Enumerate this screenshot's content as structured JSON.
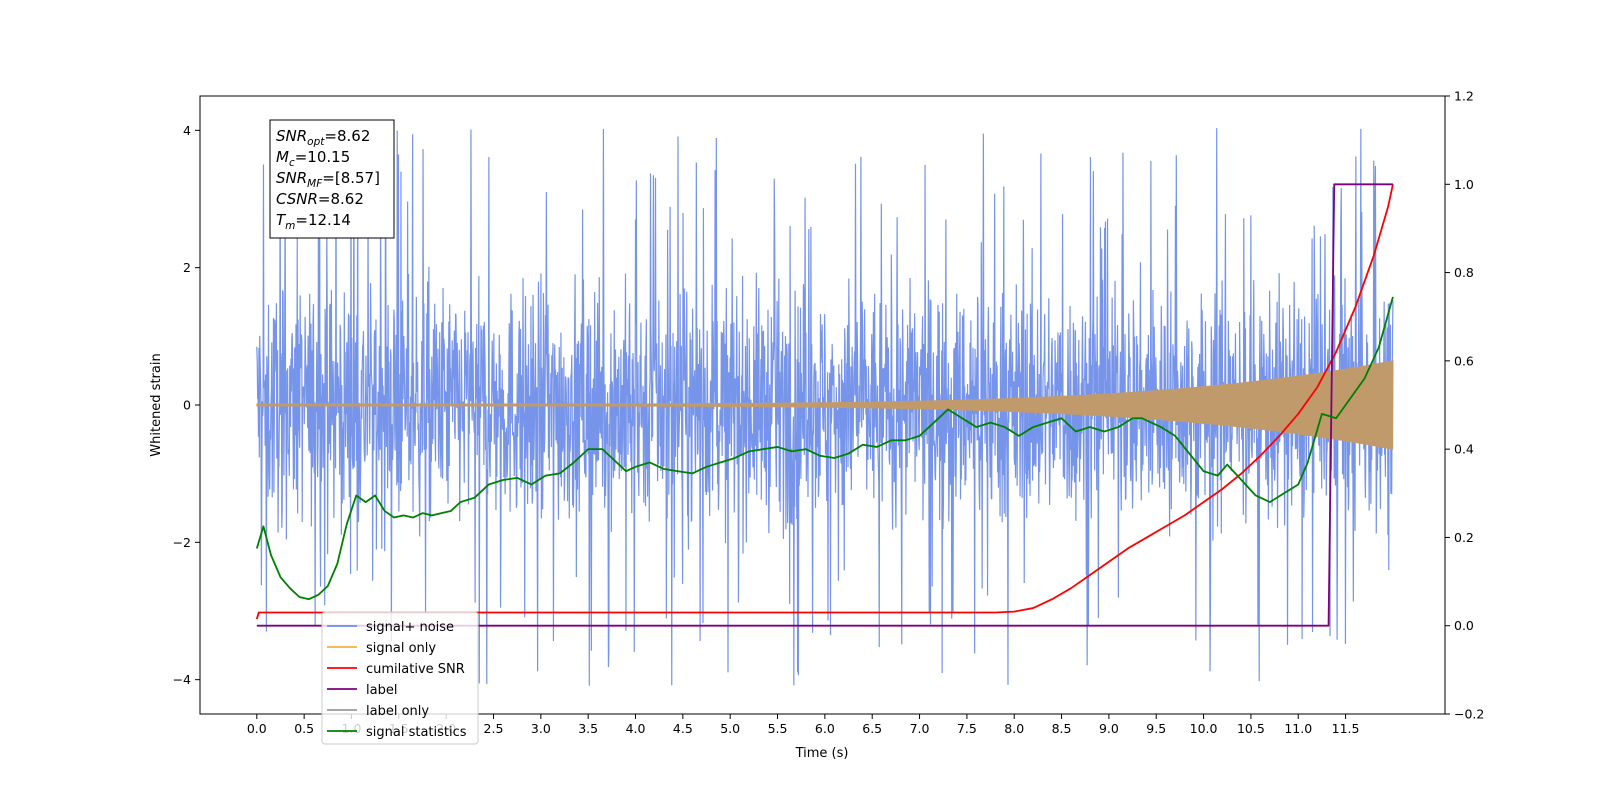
{
  "chart_data": {
    "type": "line",
    "xlabel": "Time (s)",
    "ylabel": "Whitened strain",
    "xlim": [
      -0.6,
      12.55
    ],
    "ylim": [
      -4.5,
      4.5
    ],
    "y2lim": [
      -0.2,
      1.2
    ],
    "x_ticks": [
      0.0,
      0.5,
      1.0,
      1.5,
      2.0,
      2.5,
      3.0,
      3.5,
      4.0,
      4.5,
      5.0,
      5.5,
      6.0,
      6.5,
      7.0,
      7.5,
      8.0,
      8.5,
      9.0,
      9.5,
      10.0,
      10.5,
      11.0,
      11.5
    ],
    "x_tick_labels": [
      "0.0",
      "0.5",
      "1.0",
      "1.5",
      "2.0",
      "2.5",
      "3.0",
      "3.5",
      "4.0",
      "4.5",
      "5.0",
      "5.5",
      "6.0",
      "6.5",
      "7.0",
      "7.5",
      "8.0",
      "8.5",
      "9.0",
      "9.5",
      "10.0",
      "10.5",
      "11.0",
      "11.5"
    ],
    "y_ticks": [
      -4,
      -2,
      0,
      2,
      4
    ],
    "y_tick_labels": [
      "−4",
      "−2",
      "0",
      "2",
      "4"
    ],
    "y2_ticks": [
      -0.2,
      0.0,
      0.2,
      0.4,
      0.6,
      0.8,
      1.0,
      1.2
    ],
    "y2_tick_labels": [
      "−0.2",
      "0.0",
      "0.2",
      "0.4",
      "0.6",
      "0.8",
      "1.0",
      "1.2"
    ],
    "grid": false,
    "legend_position": "lower-left",
    "annotation_lines": [
      {
        "base": "SNR",
        "sub": "opt",
        "rest": "=8.62"
      },
      {
        "base": "M",
        "sub": "c",
        "rest": "=10.15"
      },
      {
        "base": "SNR",
        "sub": "MF",
        "rest": "=[8.57]"
      },
      {
        "base": "CSNR",
        "sub": "",
        "rest": "=8.62"
      },
      {
        "base": "T",
        "sub": "m",
        "rest": "=12.14"
      }
    ],
    "series": [
      {
        "name": "signal+ noise",
        "color": "#6f8ee8",
        "axis": "left",
        "style": "noise",
        "x_range": [
          0.0,
          12.0
        ],
        "band_center": 0.0,
        "band_halfwidth": 1.6,
        "max": 4.1,
        "min": -4.1
      },
      {
        "name": "signal only",
        "color": "#f5b041",
        "axis": "left",
        "style": "chirp",
        "x_range": [
          0.0,
          12.0
        ],
        "amplitude_start": 0.02,
        "amplitude_end": 0.65
      },
      {
        "name": "cumilative SNR",
        "color": "#ff0000",
        "axis": "right",
        "x": [
          0.0,
          0.02,
          7.8,
          8.0,
          8.2,
          8.4,
          8.6,
          8.8,
          9.0,
          9.2,
          9.4,
          9.6,
          9.8,
          10.0,
          10.2,
          10.4,
          10.6,
          10.8,
          11.0,
          11.2,
          11.4,
          11.6,
          11.8,
          11.95,
          12.0
        ],
        "values": [
          0.015,
          0.03,
          0.03,
          0.032,
          0.04,
          0.06,
          0.085,
          0.115,
          0.145,
          0.175,
          0.2,
          0.225,
          0.25,
          0.28,
          0.31,
          0.345,
          0.385,
          0.43,
          0.48,
          0.54,
          0.62,
          0.72,
          0.84,
          0.95,
          1.0
        ]
      },
      {
        "name": "label",
        "color": "#800080",
        "axis": "right",
        "x": [
          0.0,
          11.32,
          11.38,
          12.0
        ],
        "values": [
          0.0,
          0.0,
          1.0,
          1.0
        ]
      },
      {
        "name": "label only",
        "color": "#999999",
        "axis": "right",
        "legend_only": true,
        "x": [],
        "values": []
      },
      {
        "name": "signal statistics",
        "color": "#008000",
        "axis": "right",
        "x": [
          0.0,
          0.07,
          0.15,
          0.25,
          0.35,
          0.45,
          0.55,
          0.65,
          0.75,
          0.85,
          0.95,
          1.05,
          1.15,
          1.25,
          1.35,
          1.45,
          1.55,
          1.65,
          1.75,
          1.85,
          1.95,
          2.05,
          2.15,
          2.3,
          2.45,
          2.6,
          2.75,
          2.9,
          3.05,
          3.2,
          3.35,
          3.5,
          3.65,
          3.8,
          3.9,
          4.0,
          4.15,
          4.3,
          4.45,
          4.6,
          4.75,
          4.9,
          5.05,
          5.2,
          5.35,
          5.5,
          5.65,
          5.8,
          5.95,
          6.1,
          6.25,
          6.4,
          6.55,
          6.7,
          6.85,
          7.0,
          7.15,
          7.3,
          7.45,
          7.6,
          7.75,
          7.9,
          8.05,
          8.2,
          8.35,
          8.5,
          8.65,
          8.8,
          8.95,
          9.1,
          9.25,
          9.35,
          9.45,
          9.55,
          9.7,
          9.85,
          10.0,
          10.15,
          10.25,
          10.4,
          10.55,
          10.7,
          10.85,
          11.0,
          11.1,
          11.25,
          11.4,
          11.55,
          11.7,
          11.85,
          12.0
        ],
        "values": [
          0.175,
          0.225,
          0.16,
          0.11,
          0.085,
          0.065,
          0.06,
          0.07,
          0.09,
          0.14,
          0.23,
          0.295,
          0.28,
          0.295,
          0.26,
          0.245,
          0.25,
          0.245,
          0.255,
          0.25,
          0.255,
          0.26,
          0.28,
          0.29,
          0.32,
          0.33,
          0.335,
          0.32,
          0.34,
          0.345,
          0.37,
          0.4,
          0.4,
          0.37,
          0.35,
          0.36,
          0.37,
          0.355,
          0.35,
          0.345,
          0.36,
          0.37,
          0.38,
          0.395,
          0.4,
          0.405,
          0.395,
          0.4,
          0.385,
          0.38,
          0.39,
          0.41,
          0.405,
          0.42,
          0.42,
          0.43,
          0.46,
          0.49,
          0.47,
          0.45,
          0.46,
          0.45,
          0.43,
          0.45,
          0.46,
          0.47,
          0.44,
          0.45,
          0.44,
          0.45,
          0.47,
          0.47,
          0.46,
          0.45,
          0.43,
          0.39,
          0.35,
          0.34,
          0.365,
          0.33,
          0.295,
          0.28,
          0.3,
          0.32,
          0.37,
          0.48,
          0.47,
          0.515,
          0.56,
          0.63,
          0.745
        ]
      }
    ]
  }
}
